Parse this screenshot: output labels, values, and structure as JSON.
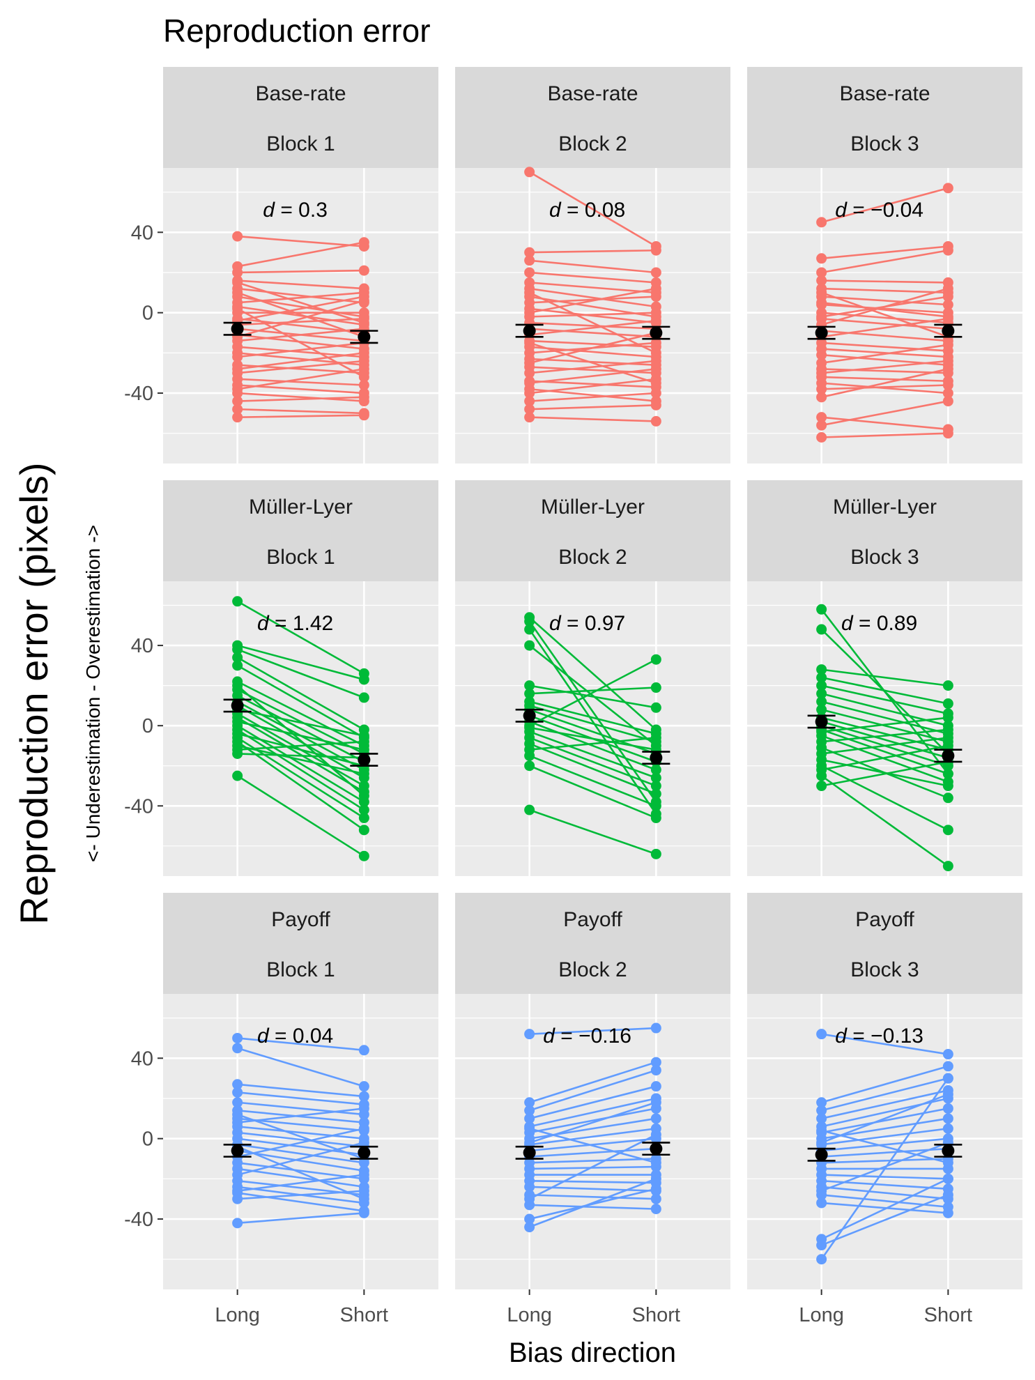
{
  "chart_data": {
    "type": "line",
    "title": "Reproduction error",
    "xlabel": "Bias direction",
    "ylabel": "Reproduction error  (pixels)",
    "ylabel_sub": "<- Underestimation  - Overestimation ->",
    "categories": [
      "Long",
      "Short"
    ],
    "ylim": [
      -75,
      72
    ],
    "y_ticks": [
      -40,
      0,
      40
    ],
    "y_tick_labels": [
      "-40",
      "0",
      "40"
    ],
    "grid": true,
    "legend": "none",
    "rows": [
      {
        "name": "Base-rate",
        "color": "#F8766D",
        "panels": [
          {
            "strip": [
              "Base-rate",
              "Block 1"
            ],
            "d_label": "d = 0.3",
            "mean": {
              "Long": -8,
              "Short": -12
            },
            "se": 3,
            "pairs": [
              [
                38,
                33
              ],
              [
                23,
                35
              ],
              [
                20,
                21
              ],
              [
                16,
                12
              ],
              [
                12,
                5
              ],
              [
                8,
                -2
              ],
              [
                5,
                10
              ],
              [
                3,
                -6
              ],
              [
                0,
                0
              ],
              [
                -3,
                -10
              ],
              [
                -6,
                -3
              ],
              [
                -8,
                -14
              ],
              [
                -11,
                -18
              ],
              [
                -14,
                -8
              ],
              [
                -17,
                -22
              ],
              [
                -20,
                -26
              ],
              [
                -22,
                -15
              ],
              [
                -26,
                -30
              ],
              [
                -30,
                -24
              ],
              [
                -33,
                -36
              ],
              [
                -36,
                -40
              ],
              [
                -38,
                -28
              ],
              [
                -40,
                -44
              ],
              [
                -44,
                -42
              ],
              [
                -48,
                -50
              ],
              [
                -52,
                -51
              ],
              [
                10,
                -12
              ],
              [
                -12,
                6
              ],
              [
                -28,
                -20
              ],
              [
                2,
                -32
              ],
              [
                -4,
                8
              ],
              [
                15,
                -5
              ]
            ]
          },
          {
            "strip": [
              "Base-rate",
              "Block 2"
            ],
            "d_label": "d = 0.08",
            "mean": {
              "Long": -9,
              "Short": -10
            },
            "se": 3,
            "pairs": [
              [
                70,
                33
              ],
              [
                30,
                31
              ],
              [
                26,
                20
              ],
              [
                20,
                15
              ],
              [
                15,
                10
              ],
              [
                12,
                3
              ],
              [
                8,
                -2
              ],
              [
                5,
                8
              ],
              [
                2,
                -5
              ],
              [
                -2,
                0
              ],
              [
                -5,
                -8
              ],
              [
                -8,
                -12
              ],
              [
                -11,
                -4
              ],
              [
                -14,
                -17
              ],
              [
                -17,
                -22
              ],
              [
                -20,
                -15
              ],
              [
                -23,
                -26
              ],
              [
                -27,
                -30
              ],
              [
                -30,
                -24
              ],
              [
                -34,
                -37
              ],
              [
                -38,
                -44
              ],
              [
                -40,
                -33
              ],
              [
                -44,
                -40
              ],
              [
                -48,
                -46
              ],
              [
                -52,
                -54
              ],
              [
                0,
                12
              ],
              [
                -25,
                -10
              ],
              [
                10,
                -20
              ],
              [
                -35,
                -28
              ],
              [
                -15,
                -35
              ]
            ]
          },
          {
            "strip": [
              "Base-rate",
              "Block 3"
            ],
            "d_label": "d = −0.04",
            "mean": {
              "Long": -10,
              "Short": -9
            },
            "se": 3,
            "pairs": [
              [
                45,
                62
              ],
              [
                27,
                33
              ],
              [
                20,
                31
              ],
              [
                16,
                15
              ],
              [
                12,
                10
              ],
              [
                8,
                4
              ],
              [
                4,
                0
              ],
              [
                0,
                -5
              ],
              [
                -3,
                -8
              ],
              [
                -6,
                12
              ],
              [
                -9,
                -14
              ],
              [
                -12,
                -3
              ],
              [
                -15,
                -19
              ],
              [
                -18,
                -22
              ],
              [
                -21,
                -26
              ],
              [
                -25,
                -16
              ],
              [
                -28,
                -30
              ],
              [
                -32,
                -34
              ],
              [
                -35,
                -40
              ],
              [
                -38,
                -36
              ],
              [
                -52,
                -58
              ],
              [
                -56,
                -44
              ],
              [
                -62,
                -60
              ],
              [
                -2,
                8
              ],
              [
                -30,
                -24
              ],
              [
                10,
                -12
              ],
              [
                -42,
                -28
              ],
              [
                5,
                -2
              ]
            ]
          }
        ]
      },
      {
        "name": "Müller-Lyer",
        "color": "#00BA38",
        "panels": [
          {
            "strip": [
              "Müller-Lyer",
              "Block 1"
            ],
            "d_label": "d = 1.42",
            "mean": {
              "Long": 10,
              "Short": -17
            },
            "se": 3,
            "pairs": [
              [
                62,
                26
              ],
              [
                40,
                23
              ],
              [
                38,
                14
              ],
              [
                34,
                -2
              ],
              [
                30,
                -6
              ],
              [
                22,
                -10
              ],
              [
                18,
                -14
              ],
              [
                15,
                -18
              ],
              [
                12,
                -22
              ],
              [
                10,
                -26
              ],
              [
                8,
                -5
              ],
              [
                6,
                -30
              ],
              [
                4,
                -33
              ],
              [
                2,
                -12
              ],
              [
                0,
                -38
              ],
              [
                -2,
                -42
              ],
              [
                -4,
                -20
              ],
              [
                -6,
                -46
              ],
              [
                -8,
                -52
              ],
              [
                -10,
                -24
              ],
              [
                -12,
                -8
              ],
              [
                -14,
                -16
              ],
              [
                -25,
                -65
              ],
              [
                20,
                -35
              ]
            ]
          },
          {
            "strip": [
              "Müller-Lyer",
              "Block 2"
            ],
            "d_label": "d = 0.97",
            "mean": {
              "Long": 5,
              "Short": -16
            },
            "se": 3,
            "pairs": [
              [
                54,
                -2
              ],
              [
                52,
                -38
              ],
              [
                48,
                -44
              ],
              [
                40,
                -10
              ],
              [
                20,
                9
              ],
              [
                16,
                19
              ],
              [
                12,
                -4
              ],
              [
                8,
                -14
              ],
              [
                5,
                -18
              ],
              [
                2,
                -22
              ],
              [
                0,
                33
              ],
              [
                -3,
                -26
              ],
              [
                -6,
                -30
              ],
              [
                -9,
                -34
              ],
              [
                -12,
                -6
              ],
              [
                -15,
                -40
              ],
              [
                -20,
                -46
              ],
              [
                -42,
                -64
              ],
              [
                10,
                -8
              ],
              [
                -1,
                -12
              ]
            ]
          },
          {
            "strip": [
              "Müller-Lyer",
              "Block 3"
            ],
            "d_label": "d = 0.89",
            "mean": {
              "Long": 2,
              "Short": -15
            },
            "se": 3,
            "pairs": [
              [
                58,
                -24
              ],
              [
                48,
                -14
              ],
              [
                28,
                20
              ],
              [
                24,
                11
              ],
              [
                20,
                6
              ],
              [
                16,
                0
              ],
              [
                12,
                -4
              ],
              [
                8,
                -8
              ],
              [
                4,
                -12
              ],
              [
                2,
                -16
              ],
              [
                0,
                -20
              ],
              [
                -2,
                -24
              ],
              [
                -5,
                -28
              ],
              [
                -8,
                -2
              ],
              [
                -11,
                -36
              ],
              [
                -14,
                -6
              ],
              [
                -17,
                -30
              ],
              [
                -20,
                -52
              ],
              [
                -22,
                -10
              ],
              [
                -25,
                -70
              ],
              [
                -30,
                -18
              ],
              [
                -3,
                4
              ]
            ]
          }
        ]
      },
      {
        "name": "Payoff",
        "color": "#619CFF",
        "panels": [
          {
            "strip": [
              "Payoff",
              "Block 1"
            ],
            "d_label": "d = 0.04",
            "mean": {
              "Long": -6,
              "Short": -7
            },
            "se": 3,
            "pairs": [
              [
                50,
                44
              ],
              [
                45,
                26
              ],
              [
                27,
                21
              ],
              [
                23,
                17
              ],
              [
                18,
                12
              ],
              [
                14,
                8
              ],
              [
                10,
                4
              ],
              [
                6,
                0
              ],
              [
                3,
                -4
              ],
              [
                0,
                -8
              ],
              [
                -3,
                -12
              ],
              [
                -6,
                -16
              ],
              [
                -9,
                5
              ],
              [
                -12,
                -20
              ],
              [
                -15,
                -24
              ],
              [
                -18,
                -2
              ],
              [
                -21,
                -28
              ],
              [
                -24,
                -32
              ],
              [
                -27,
                -36
              ],
              [
                -30,
                -26
              ],
              [
                -42,
                -37
              ],
              [
                8,
                15
              ],
              [
                -4,
                -30
              ],
              [
                12,
                -10
              ],
              [
                -26,
                -18
              ]
            ]
          },
          {
            "strip": [
              "Payoff",
              "Block 2"
            ],
            "d_label": "d = −0.16",
            "mean": {
              "Long": -7,
              "Short": -5
            },
            "se": 3,
            "pairs": [
              [
                52,
                55
              ],
              [
                18,
                38
              ],
              [
                14,
                34
              ],
              [
                10,
                26
              ],
              [
                6,
                20
              ],
              [
                3,
                15
              ],
              [
                0,
                10
              ],
              [
                -3,
                5
              ],
              [
                -6,
                0
              ],
              [
                -9,
                -5
              ],
              [
                -12,
                -10
              ],
              [
                -15,
                -14
              ],
              [
                -18,
                -18
              ],
              [
                -21,
                -22
              ],
              [
                -24,
                -26
              ],
              [
                -28,
                -30
              ],
              [
                -33,
                -35
              ],
              [
                -40,
                -25
              ],
              [
                -44,
                -20
              ],
              [
                5,
                -12
              ],
              [
                -2,
                18
              ],
              [
                -30,
                2
              ]
            ]
          },
          {
            "strip": [
              "Payoff",
              "Block 3"
            ],
            "d_label": "d = −0.13",
            "mean": {
              "Long": -8,
              "Short": -6
            },
            "se": 3,
            "pairs": [
              [
                52,
                42
              ],
              [
                18,
                36
              ],
              [
                14,
                30
              ],
              [
                10,
                24
              ],
              [
                6,
                20
              ],
              [
                3,
                15
              ],
              [
                0,
                10
              ],
              [
                -3,
                5
              ],
              [
                -6,
                0
              ],
              [
                -9,
                -5
              ],
              [
                -12,
                -10
              ],
              [
                -15,
                -15
              ],
              [
                -18,
                -20
              ],
              [
                -21,
                -25
              ],
              [
                -24,
                -30
              ],
              [
                -28,
                -34
              ],
              [
                -32,
                -37
              ],
              [
                -50,
                -20
              ],
              [
                -53,
                -28
              ],
              [
                -60,
                30
              ],
              [
                4,
                -12
              ],
              [
                -2,
                22
              ],
              [
                -26,
                -2
              ]
            ]
          }
        ]
      }
    ]
  }
}
